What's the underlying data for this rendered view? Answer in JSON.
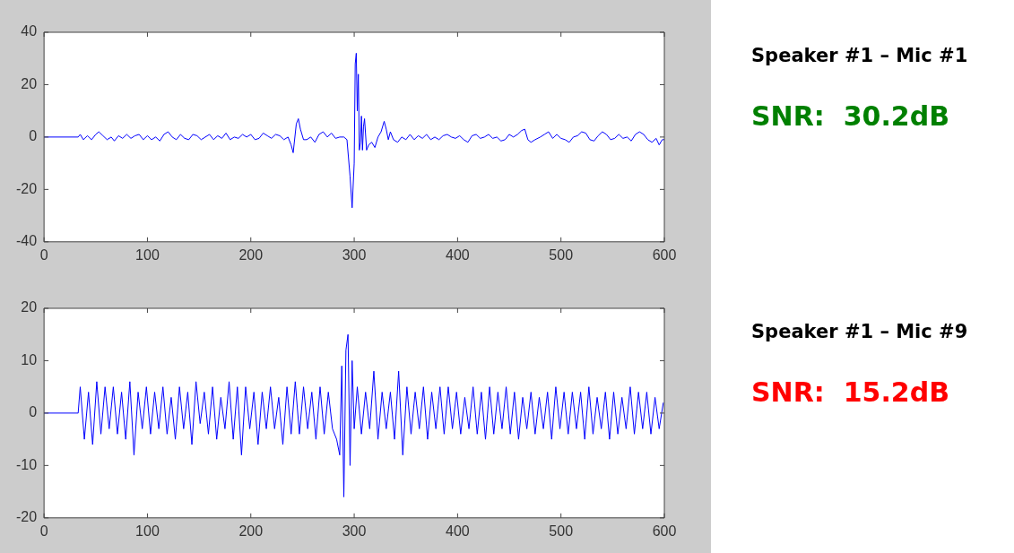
{
  "chart_data": [
    {
      "type": "line",
      "xlim": [
        0,
        600
      ],
      "xticks": [
        0,
        100,
        200,
        300,
        400,
        500,
        600
      ],
      "ylim": [
        -40,
        40
      ],
      "yticks": [
        -40,
        -20,
        0,
        20,
        40
      ],
      "annotations": [
        "Speaker #1 – Mic #1",
        "SNR:  30.2dB"
      ],
      "series": [
        {
          "color": "#0000ff",
          "x": [
            0,
            33,
            35,
            38,
            42,
            46,
            50,
            53,
            57,
            61,
            65,
            68,
            72,
            76,
            80,
            84,
            88,
            92,
            96,
            100,
            104,
            108,
            112,
            116,
            120,
            124,
            128,
            132,
            136,
            140,
            144,
            148,
            152,
            156,
            160,
            164,
            168,
            172,
            176,
            180,
            184,
            188,
            192,
            196,
            200,
            204,
            208,
            212,
            216,
            220,
            224,
            228,
            232,
            236,
            239,
            241,
            244,
            246,
            248,
            251,
            254,
            258,
            262,
            266,
            270,
            274,
            278,
            282,
            286,
            290,
            293,
            296,
            298,
            300,
            301,
            302,
            303,
            304,
            305,
            306,
            307,
            308,
            309,
            310,
            312,
            314,
            317,
            320,
            323,
            326,
            329,
            331,
            333,
            335,
            338,
            342,
            346,
            350,
            354,
            358,
            362,
            366,
            370,
            374,
            378,
            382,
            386,
            390,
            394,
            398,
            402,
            406,
            410,
            414,
            418,
            422,
            426,
            430,
            434,
            438,
            442,
            446,
            450,
            454,
            458,
            462,
            465,
            468,
            471,
            475,
            480,
            484,
            488,
            492,
            496,
            500,
            504,
            508,
            512,
            516,
            520,
            524,
            528,
            532,
            536,
            540,
            544,
            548,
            552,
            556,
            560,
            564,
            568,
            572,
            576,
            580,
            584,
            588,
            592,
            595,
            598,
            600
          ],
          "values": [
            0,
            0,
            1,
            -1,
            0.5,
            -1,
            1,
            2,
            0.5,
            -1,
            0,
            -1.5,
            0.5,
            -0.5,
            1,
            -0.5,
            0.5,
            1,
            -1,
            0.5,
            -1,
            0,
            -1.5,
            1,
            2,
            0,
            -1,
            1,
            -0.5,
            -1,
            1,
            0.5,
            -1,
            0,
            1,
            -1,
            0.5,
            -0.5,
            1.5,
            -1,
            0,
            -0.5,
            1,
            0,
            1,
            -1,
            -0.5,
            1.5,
            0.5,
            -0.5,
            1,
            0.5,
            -1,
            0,
            -3,
            -6,
            5,
            7,
            3,
            -1,
            -1,
            0,
            -2,
            1,
            2,
            0,
            1.5,
            -0.5,
            0,
            0,
            -1,
            -15,
            -27,
            -10,
            28,
            32,
            10,
            24,
            -5,
            -2,
            8,
            -5,
            4,
            7,
            -5,
            -3,
            -2,
            -4,
            0,
            2,
            6,
            3,
            -1,
            2,
            -1,
            -2,
            0,
            -1,
            1,
            -1,
            0.5,
            -0.5,
            1,
            -1,
            0,
            -1,
            0.5,
            1,
            0,
            -0.5,
            0.5,
            -1,
            -2,
            0.5,
            1,
            -0.5,
            0,
            1,
            -0.5,
            0,
            -1.5,
            -1,
            1,
            0,
            1,
            2.5,
            3,
            -1,
            -2,
            -1,
            0,
            1,
            2,
            -0.5,
            1,
            -0.5,
            -1,
            -2,
            0,
            0.5,
            2,
            1.5,
            -1,
            -1.5,
            0.5,
            2,
            1,
            -1,
            -0.5,
            1,
            -0.5,
            0,
            -1.5,
            1,
            2,
            1,
            -1,
            -2,
            -0.5,
            -3,
            -1,
            -1
          ]
        }
      ]
    },
    {
      "type": "line",
      "xlim": [
        0,
        600
      ],
      "xticks": [
        0,
        100,
        200,
        300,
        400,
        500,
        600
      ],
      "ylim": [
        -20,
        20
      ],
      "yticks": [
        -20,
        -10,
        0,
        10,
        20
      ],
      "annotations": [
        "Speaker #1 – Mic #9",
        "SNR:  15.2dB"
      ],
      "series": [
        {
          "color": "#0000ff",
          "x": [
            0,
            33,
            35,
            39,
            43,
            47,
            51,
            55,
            59,
            63,
            67,
            71,
            75,
            79,
            83,
            87,
            91,
            95,
            99,
            103,
            107,
            111,
            115,
            119,
            123,
            127,
            131,
            135,
            139,
            143,
            147,
            151,
            155,
            159,
            163,
            167,
            171,
            175,
            179,
            183,
            187,
            191,
            195,
            199,
            203,
            207,
            211,
            215,
            219,
            223,
            227,
            231,
            235,
            239,
            243,
            247,
            251,
            255,
            259,
            263,
            267,
            271,
            275,
            279,
            283,
            286,
            288,
            290,
            292,
            294,
            296,
            298,
            300,
            303,
            307,
            311,
            315,
            319,
            323,
            327,
            331,
            335,
            339,
            343,
            347,
            351,
            355,
            359,
            363,
            367,
            371,
            375,
            379,
            383,
            387,
            391,
            395,
            399,
            403,
            407,
            411,
            415,
            419,
            423,
            427,
            431,
            435,
            439,
            443,
            447,
            451,
            455,
            459,
            463,
            467,
            471,
            475,
            479,
            483,
            487,
            491,
            495,
            499,
            503,
            507,
            511,
            515,
            519,
            523,
            527,
            531,
            535,
            539,
            543,
            547,
            551,
            555,
            559,
            563,
            567,
            571,
            575,
            579,
            583,
            587,
            591,
            595,
            599
          ],
          "values": [
            0,
            0,
            5,
            -5,
            4,
            -6,
            6,
            -4,
            5,
            -3,
            5,
            -4,
            4,
            -5,
            6,
            -8,
            4,
            -3,
            5,
            -4,
            4,
            -3,
            5,
            -4,
            3,
            -5,
            5,
            -3,
            4,
            -6,
            6,
            -2,
            4,
            -4,
            5,
            -5,
            3,
            -3,
            6,
            -5,
            5,
            -8,
            5,
            -3,
            4,
            -6,
            4,
            -3,
            5,
            -3,
            3,
            -6,
            5,
            -4,
            6,
            -4,
            5,
            -3,
            4,
            -5,
            5,
            -4,
            4,
            -3,
            -5,
            -8,
            9,
            -16,
            12,
            15,
            -10,
            10,
            -3,
            5,
            -4,
            4,
            -3,
            8,
            -5,
            4,
            -3,
            4,
            -5,
            8,
            -8,
            5,
            -4,
            4,
            -3,
            5,
            -5,
            4,
            -3,
            5,
            -4,
            5,
            -3,
            4,
            -4,
            3,
            -3,
            5,
            -4,
            4,
            -5,
            5,
            -4,
            4,
            -3,
            5,
            -4,
            4,
            -5,
            3,
            -3,
            4,
            -4,
            3,
            -3,
            4,
            -5,
            5,
            -3,
            4,
            -4,
            4,
            -3,
            4,
            -5,
            5,
            -4,
            3,
            -3,
            4,
            -5,
            4,
            -4,
            3,
            -3,
            5,
            -4,
            4,
            -3,
            4,
            -4,
            3,
            -3,
            2
          ]
        }
      ]
    }
  ]
}
